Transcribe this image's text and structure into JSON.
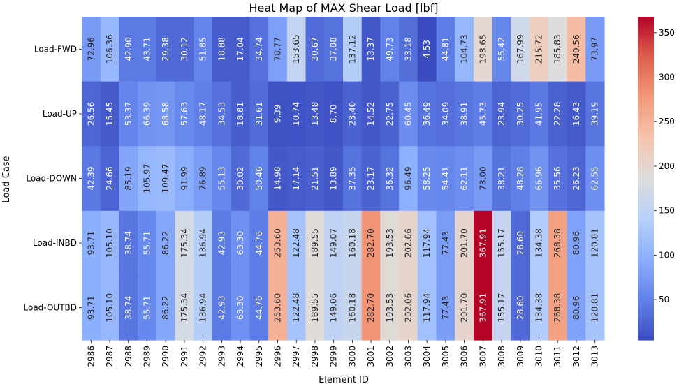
{
  "chart_data": {
    "type": "heatmap",
    "title": "Heat Map of MAX Shear Load [lbf]",
    "xlabel": "Element ID",
    "ylabel": "Load Case",
    "x": [
      "2986",
      "2987",
      "2988",
      "2989",
      "2990",
      "2991",
      "2992",
      "2993",
      "2994",
      "2995",
      "2996",
      "2997",
      "2998",
      "2999",
      "3000",
      "3001",
      "3002",
      "3003",
      "3004",
      "3005",
      "3006",
      "3007",
      "3008",
      "3009",
      "3010",
      "3011",
      "3012",
      "3013"
    ],
    "y": [
      "Load-FWD",
      "Load-UP",
      "Load-DOWN",
      "Load-INBD",
      "Load-OUTBD"
    ],
    "values": [
      [
        72.96,
        106.36,
        42.9,
        43.71,
        29.38,
        30.12,
        51.85,
        18.88,
        17.04,
        34.74,
        78.77,
        153.65,
        30.67,
        37.08,
        137.12,
        13.37,
        49.73,
        33.18,
        4.53,
        44.81,
        104.73,
        198.65,
        55.42,
        167.99,
        215.72,
        185.83,
        240.56,
        73.97
      ],
      [
        26.56,
        15.45,
        53.37,
        66.39,
        68.58,
        57.63,
        48.17,
        34.53,
        18.81,
        31.61,
        9.39,
        10.74,
        13.48,
        8.7,
        23.4,
        14.52,
        22.75,
        60.45,
        36.49,
        34.09,
        38.91,
        45.73,
        23.94,
        30.25,
        41.95,
        22.28,
        16.43,
        39.19
      ],
      [
        42.39,
        24.66,
        85.19,
        105.97,
        109.47,
        91.99,
        76.89,
        55.13,
        30.02,
        50.46,
        14.98,
        17.14,
        21.51,
        13.89,
        37.35,
        23.17,
        36.32,
        96.49,
        58.25,
        54.41,
        62.11,
        73.0,
        38.21,
        48.28,
        66.96,
        35.56,
        26.23,
        62.55
      ],
      [
        93.71,
        105.1,
        38.74,
        55.71,
        86.22,
        175.34,
        136.94,
        42.93,
        63.3,
        44.76,
        253.6,
        122.48,
        189.55,
        149.07,
        160.18,
        282.7,
        193.53,
        202.06,
        117.94,
        77.43,
        201.7,
        367.91,
        155.17,
        28.6,
        134.38,
        268.38,
        80.96,
        120.81
      ],
      [
        93.71,
        105.1,
        38.74,
        55.71,
        86.22,
        175.34,
        136.94,
        42.93,
        63.3,
        44.76,
        253.6,
        122.48,
        189.55,
        149.06,
        160.18,
        282.7,
        193.53,
        202.06,
        117.94,
        77.43,
        201.7,
        367.91,
        155.17,
        28.6,
        134.38,
        268.38,
        80.96,
        120.81
      ]
    ],
    "vmin": 4.53,
    "vmax": 367.91,
    "colormap": "coolwarm",
    "colorbar_ticks": [
      50,
      100,
      150,
      200,
      250,
      300,
      350
    ],
    "grid": false,
    "legend": "colorbar-right"
  }
}
